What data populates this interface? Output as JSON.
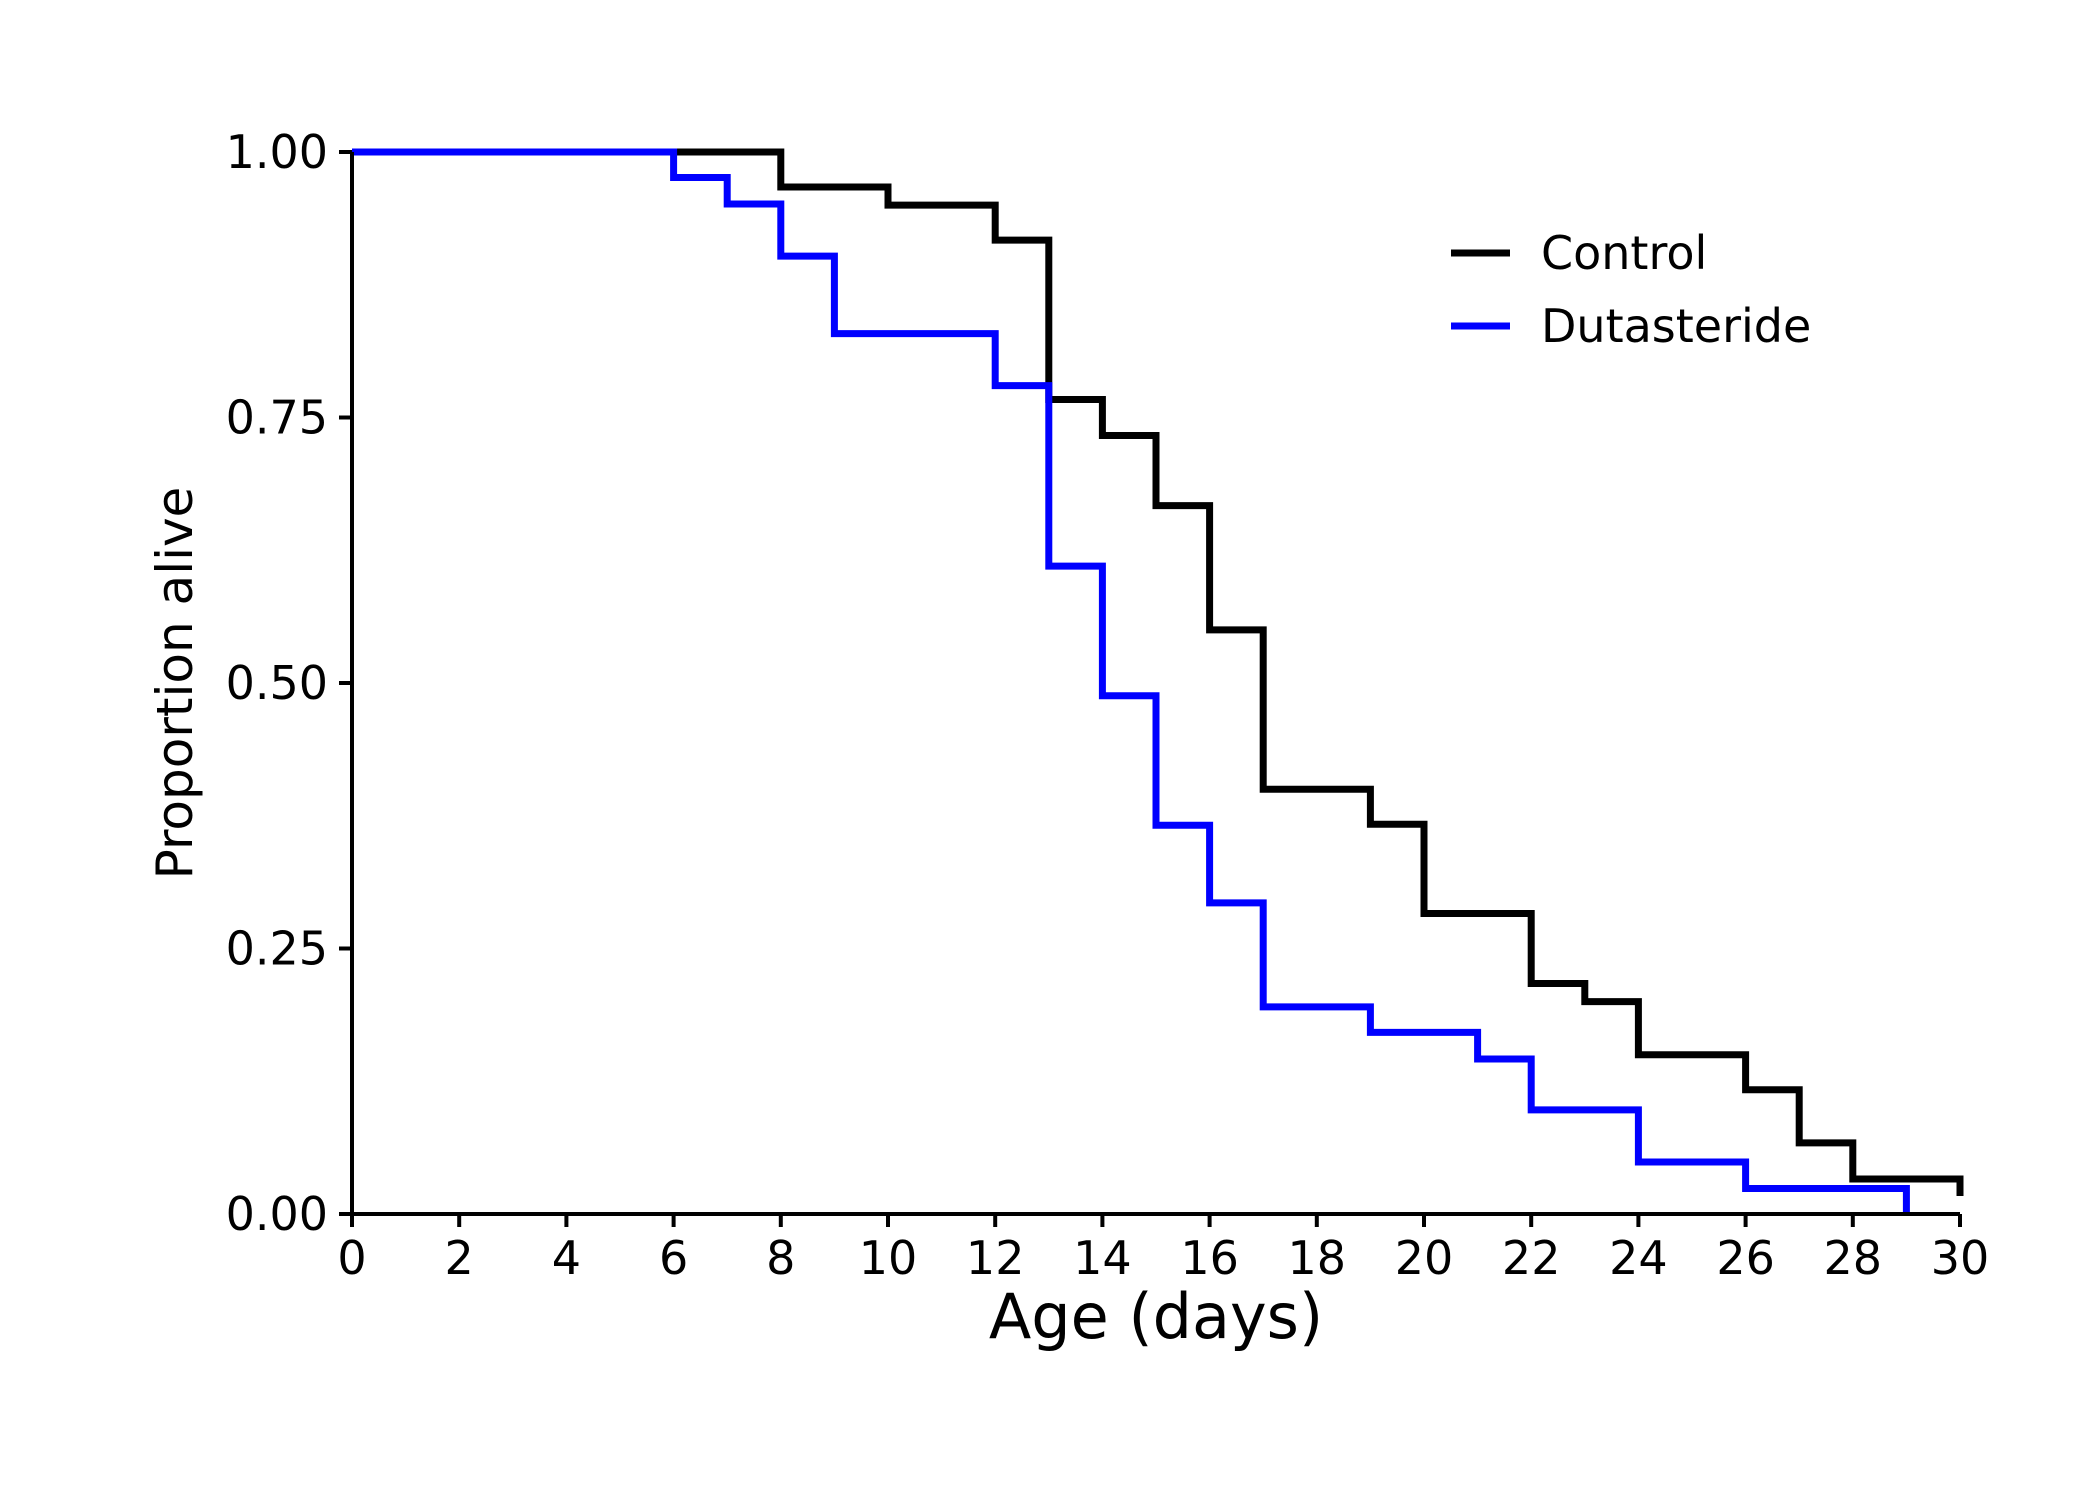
{
  "chart_data": {
    "type": "line",
    "xlabel": "Age (days)",
    "ylabel": "Proportion alive",
    "xlim": [
      0,
      30
    ],
    "ylim": [
      0,
      1
    ],
    "xticks": [
      0,
      2,
      4,
      6,
      8,
      10,
      12,
      14,
      16,
      18,
      20,
      22,
      24,
      26,
      28,
      30
    ],
    "yticks": [
      0,
      0.25,
      0.5,
      0.75,
      1.0
    ],
    "xtick_labels": [
      "0",
      "2",
      "4",
      "6",
      "8",
      "10",
      "12",
      "14",
      "16",
      "18",
      "20",
      "22",
      "24",
      "26",
      "28",
      "30"
    ],
    "ytick_labels": [
      "0.00",
      "0.25",
      "0.50",
      "0.75",
      "1.00"
    ],
    "grid": false,
    "legend_position": "top-right",
    "series": [
      {
        "name": "Control",
        "color": "#000000",
        "step": "post",
        "x": [
          0,
          8,
          10,
          12,
          13,
          14,
          15,
          16,
          17,
          19,
          20,
          22,
          23,
          24,
          26,
          27,
          28,
          30
        ],
        "y": [
          1.0,
          0.967,
          0.95,
          0.917,
          0.767,
          0.733,
          0.667,
          0.55,
          0.4,
          0.367,
          0.283,
          0.217,
          0.2,
          0.15,
          0.117,
          0.067,
          0.033,
          0.017
        ]
      },
      {
        "name": "Dutasteride",
        "color": "#0000ff",
        "step": "post",
        "x": [
          0,
          6,
          7,
          8,
          9,
          12,
          13,
          14,
          15,
          16,
          17,
          19,
          21,
          22,
          24,
          26,
          29
        ],
        "y": [
          1.0,
          0.976,
          0.951,
          0.902,
          0.829,
          0.78,
          0.61,
          0.488,
          0.366,
          0.293,
          0.195,
          0.171,
          0.146,
          0.098,
          0.049,
          0.024,
          0.0
        ]
      }
    ]
  }
}
